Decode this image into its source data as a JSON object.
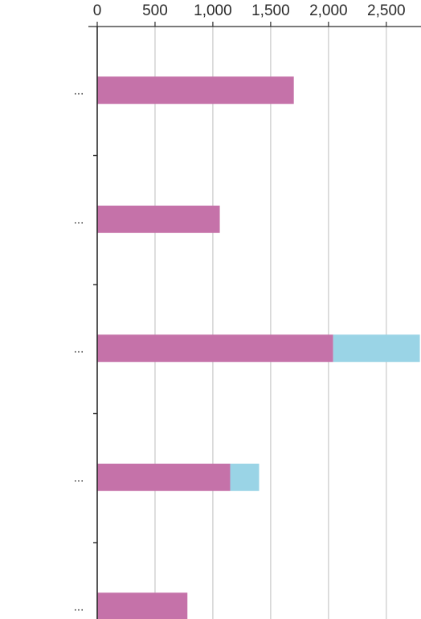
{
  "chart_data": {
    "type": "bar",
    "orientation": "horizontal",
    "stacked": true,
    "categories": [
      "...",
      "...",
      "...",
      "...",
      "..."
    ],
    "series": [
      {
        "values": [
          1700,
          1060,
          2040,
          1150,
          780
        ],
        "color": "#c572a9"
      },
      {
        "values": [
          0,
          0,
          750,
          250,
          0
        ],
        "color": "#9ad4e6"
      }
    ],
    "xlim": [
      0,
      2800
    ],
    "xticks": [
      0,
      500,
      1000,
      1500,
      2000,
      2500
    ],
    "xtick_labels": [
      "0",
      "500",
      "1,000",
      "1,500",
      "2,000",
      "2,500"
    ],
    "x_axis_position": "top",
    "grid": true,
    "legend": "none",
    "title": "",
    "xlabel": "",
    "ylabel": ""
  }
}
